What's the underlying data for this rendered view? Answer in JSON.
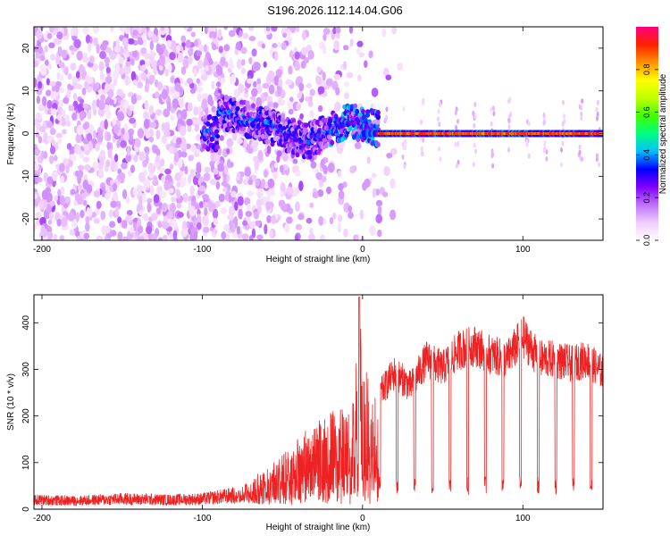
{
  "title": "S196.2026.112.14.04.G06",
  "chart_data": [
    {
      "type": "heatmap",
      "xlabel": "Height of straight line (km)",
      "ylabel": "Frequency (Hz)",
      "xlim": [
        -205,
        150
      ],
      "ylim": [
        -25,
        25
      ],
      "xticks": [
        -200,
        -100,
        0,
        100
      ],
      "yticks": [
        -20,
        -10,
        0,
        10,
        20
      ],
      "colorbar": {
        "label": "Normalized spectral amplitude",
        "range": [
          0,
          1
        ],
        "ticks": [
          0.0,
          0.2,
          0.4,
          0.6,
          0.8
        ],
        "colors": [
          "#ffffff",
          "#f0ccff",
          "#c070ff",
          "#8000ff",
          "#0000ff",
          "#00c0ff",
          "#00ff80",
          "#40ff00",
          "#c0ff00",
          "#ffff00",
          "#ff9000",
          "#ff2000",
          "#ff0080"
        ]
      },
      "description_points": [
        {
          "x": -90,
          "y": 5,
          "v": 0.3
        },
        {
          "x": -60,
          "y": 2,
          "v": 0.35
        },
        {
          "x": -35,
          "y": -2,
          "v": 0.3
        },
        {
          "x": -10,
          "y": 3,
          "v": 0.45
        },
        {
          "x": 20,
          "y": 0,
          "v": 0.9
        },
        {
          "x": 100,
          "y": 0,
          "v": 0.9
        }
      ]
    },
    {
      "type": "line",
      "xlabel": "Height of straight line (km)",
      "ylabel": "SNR (10 * v/v)",
      "xlim": [
        -205,
        150
      ],
      "ylim": [
        0,
        460
      ],
      "xticks": [
        -200,
        -100,
        0,
        100
      ],
      "yticks": [
        0,
        100,
        200,
        300,
        400
      ],
      "series": [
        {
          "name": "SNR",
          "color": "#ee2222",
          "x": [
            -205,
            -180,
            -150,
            -120,
            -100,
            -80,
            -70,
            -60,
            -50,
            -40,
            -30,
            -20,
            -10,
            -5,
            -2,
            0,
            10,
            20,
            30,
            40,
            50,
            60,
            70,
            80,
            90,
            100,
            110,
            120,
            130,
            140,
            150
          ],
          "y": [
            20,
            18,
            22,
            20,
            22,
            30,
            60,
            80,
            110,
            140,
            170,
            190,
            210,
            230,
            450,
            280,
            250,
            300,
            270,
            330,
            310,
            350,
            360,
            340,
            330,
            380,
            330,
            330,
            320,
            330,
            300
          ]
        }
      ]
    }
  ]
}
